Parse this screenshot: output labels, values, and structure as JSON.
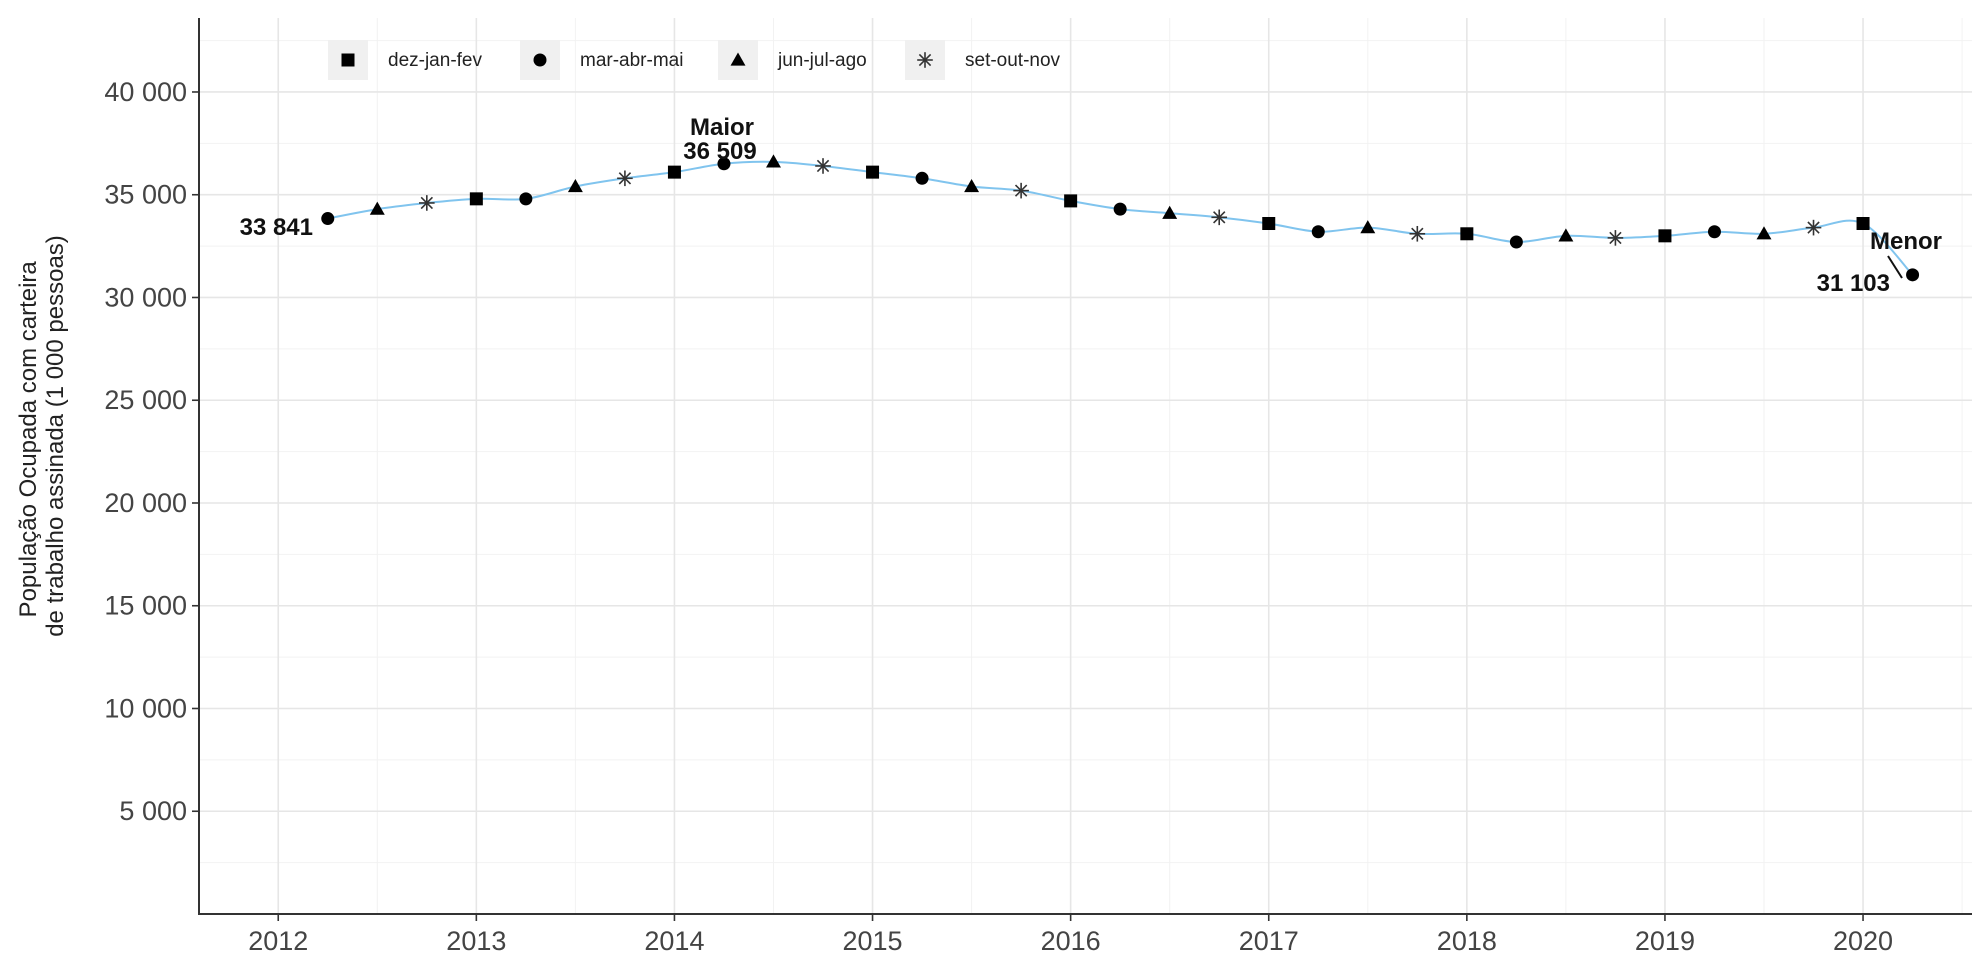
{
  "chart_data": {
    "type": "line",
    "title": "",
    "xlabel": "",
    "ylabel_lines": [
      "População Ocupada com carteira",
      "de trabalho assinada (1 000 pessoas)"
    ],
    "xlim": [
      2011.6,
      2020.55
    ],
    "ylim": [
      0,
      43600
    ],
    "x_ticks": [
      2012,
      2013,
      2014,
      2015,
      2016,
      2017,
      2018,
      2019,
      2020
    ],
    "x_tick_labels": [
      "2012",
      "2013",
      "2014",
      "2015",
      "2016",
      "2017",
      "2018",
      "2019",
      "2020"
    ],
    "y_ticks": [
      5000,
      10000,
      15000,
      20000,
      25000,
      30000,
      35000,
      40000
    ],
    "y_tick_labels": [
      "5 000",
      "10 000",
      "15 000",
      "20 000",
      "25 000",
      "30 000",
      "35 000",
      "40 000"
    ],
    "grid": true,
    "legend_position": "top-left",
    "line_color": "#80c4ee",
    "marker_color": "#000000",
    "legend": [
      {
        "name": "dez-jan-fev",
        "shape": "square"
      },
      {
        "name": "mar-abr-mai",
        "shape": "circle"
      },
      {
        "name": "jun-jul-ago",
        "shape": "triangle"
      },
      {
        "name": "set-out-nov",
        "shape": "asterisk"
      }
    ],
    "points": [
      {
        "x": 2012.25,
        "y": 33841,
        "shape": "circle"
      },
      {
        "x": 2012.5,
        "y": 34300,
        "shape": "triangle"
      },
      {
        "x": 2012.75,
        "y": 34600,
        "shape": "asterisk"
      },
      {
        "x": 2013.0,
        "y": 34800,
        "shape": "square"
      },
      {
        "x": 2013.25,
        "y": 34800,
        "shape": "circle"
      },
      {
        "x": 2013.5,
        "y": 35400,
        "shape": "triangle"
      },
      {
        "x": 2013.75,
        "y": 35800,
        "shape": "asterisk"
      },
      {
        "x": 2014.0,
        "y": 36100,
        "shape": "square"
      },
      {
        "x": 2014.25,
        "y": 36509,
        "shape": "circle"
      },
      {
        "x": 2014.5,
        "y": 36600,
        "shape": "triangle"
      },
      {
        "x": 2014.75,
        "y": 36400,
        "shape": "asterisk"
      },
      {
        "x": 2015.0,
        "y": 36100,
        "shape": "square"
      },
      {
        "x": 2015.25,
        "y": 35800,
        "shape": "circle"
      },
      {
        "x": 2015.5,
        "y": 35400,
        "shape": "triangle"
      },
      {
        "x": 2015.75,
        "y": 35200,
        "shape": "asterisk"
      },
      {
        "x": 2016.0,
        "y": 34700,
        "shape": "square"
      },
      {
        "x": 2016.25,
        "y": 34300,
        "shape": "circle"
      },
      {
        "x": 2016.5,
        "y": 34100,
        "shape": "triangle"
      },
      {
        "x": 2016.75,
        "y": 33900,
        "shape": "asterisk"
      },
      {
        "x": 2017.0,
        "y": 33600,
        "shape": "square"
      },
      {
        "x": 2017.25,
        "y": 33200,
        "shape": "circle"
      },
      {
        "x": 2017.5,
        "y": 33400,
        "shape": "triangle"
      },
      {
        "x": 2017.75,
        "y": 33100,
        "shape": "asterisk"
      },
      {
        "x": 2018.0,
        "y": 33100,
        "shape": "square"
      },
      {
        "x": 2018.25,
        "y": 32700,
        "shape": "circle"
      },
      {
        "x": 2018.5,
        "y": 33000,
        "shape": "triangle"
      },
      {
        "x": 2018.75,
        "y": 32900,
        "shape": "asterisk"
      },
      {
        "x": 2019.0,
        "y": 33000,
        "shape": "square"
      },
      {
        "x": 2019.25,
        "y": 33200,
        "shape": "circle"
      },
      {
        "x": 2019.5,
        "y": 33100,
        "shape": "triangle"
      },
      {
        "x": 2019.75,
        "y": 33400,
        "shape": "asterisk"
      },
      {
        "x": 2020.0,
        "y": 33600,
        "shape": "square"
      },
      {
        "x": 2020.25,
        "y": 31103,
        "shape": "circle"
      }
    ],
    "annotations": {
      "first": {
        "value_label": "33 841"
      },
      "max": {
        "title": "Maior",
        "value_label": "36 509"
      },
      "min": {
        "title": "Menor",
        "value_label": "31 103"
      }
    }
  }
}
